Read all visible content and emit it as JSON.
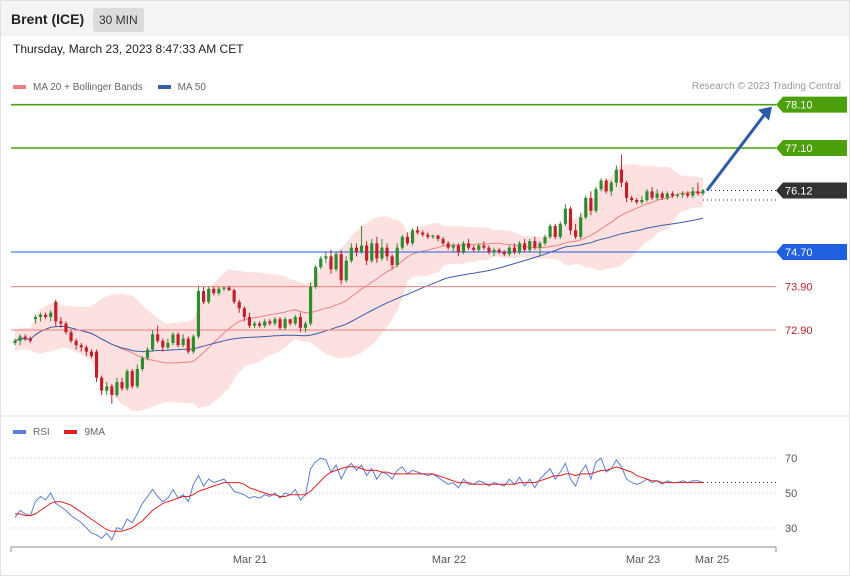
{
  "header": {
    "instrument": "Brent (ICE)",
    "timeframe": "30 MIN",
    "datetime": "Thursday, March 23, 2023 8:47:33 AM CET"
  },
  "legend_main": [
    {
      "label": "MA 20 + Bollinger Bands",
      "color": "#f08080"
    },
    {
      "label": "MA 50",
      "color": "#3b5ea8"
    }
  ],
  "legend_rsi": [
    {
      "label": "RSI",
      "color": "#5b7fd8"
    },
    {
      "label": "9MA",
      "color": "#e02020"
    }
  ],
  "credit": "Research © 2023 Trading Central",
  "colors": {
    "up": "#2e8b2e",
    "down": "#c0202a",
    "target": "#4ca00c",
    "pivot": "#1f5fe0",
    "support": "#f08080",
    "last": "#333333",
    "arrow": "#2f5aa8",
    "band": "#fde0e0"
  },
  "chart_data": [
    {
      "type": "candlestick",
      "title": "Brent (ICE)",
      "timeframe": "30 MIN",
      "ylim": [
        71.1,
        78.3
      ],
      "x_labels": [
        "Mar 21",
        "Mar 22",
        "Mar 23",
        "Mar 25"
      ],
      "levels": [
        {
          "value": 78.1,
          "label": "78.10",
          "kind": "target"
        },
        {
          "value": 77.1,
          "label": "77.10",
          "kind": "target"
        },
        {
          "value": 76.12,
          "label": "76.12",
          "kind": "last"
        },
        {
          "value": 74.7,
          "label": "74.70",
          "kind": "pivot"
        },
        {
          "value": 73.9,
          "label": "73.90",
          "kind": "support"
        },
        {
          "value": 72.9,
          "label": "72.90",
          "kind": "support"
        }
      ],
      "last_price": 76.12,
      "projection": {
        "from": 76.12,
        "to": 78.1
      },
      "candles": [
        [
          72.6,
          72.7,
          72.55,
          72.65
        ],
        [
          72.65,
          72.8,
          72.55,
          72.75
        ],
        [
          72.75,
          72.8,
          72.65,
          72.7
        ],
        [
          72.7,
          72.75,
          72.6,
          72.65
        ],
        [
          73.15,
          73.25,
          73.05,
          73.2
        ],
        [
          73.2,
          73.3,
          73.1,
          73.25
        ],
        [
          73.25,
          73.3,
          73.15,
          73.2
        ],
        [
          73.2,
          73.35,
          73.1,
          73.3
        ],
        [
          73.55,
          73.6,
          73.0,
          73.1
        ],
        [
          73.1,
          73.2,
          72.95,
          73.05
        ],
        [
          73.05,
          73.1,
          72.8,
          72.85
        ],
        [
          72.85,
          72.9,
          72.6,
          72.65
        ],
        [
          72.65,
          72.7,
          72.45,
          72.55
        ],
        [
          72.55,
          72.6,
          72.4,
          72.5
        ],
        [
          72.5,
          72.55,
          72.3,
          72.4
        ],
        [
          72.4,
          72.45,
          72.25,
          72.3
        ],
        [
          72.4,
          72.45,
          71.7,
          71.8
        ],
        [
          71.8,
          71.85,
          71.4,
          71.5
        ],
        [
          71.5,
          71.7,
          71.4,
          71.6
        ],
        [
          71.6,
          71.65,
          71.2,
          71.4
        ],
        [
          71.4,
          71.8,
          71.35,
          71.7
        ],
        [
          71.7,
          71.8,
          71.5,
          71.55
        ],
        [
          71.55,
          72.0,
          71.5,
          71.95
        ],
        [
          71.95,
          72.0,
          71.55,
          71.6
        ],
        [
          71.6,
          72.1,
          71.55,
          72.0
        ],
        [
          72.0,
          72.3,
          71.95,
          72.25
        ],
        [
          72.25,
          72.5,
          72.2,
          72.45
        ],
        [
          72.45,
          72.9,
          72.4,
          72.8
        ],
        [
          72.8,
          73.0,
          72.6,
          72.65
        ],
        [
          72.65,
          72.7,
          72.4,
          72.5
        ],
        [
          72.5,
          72.7,
          72.45,
          72.6
        ],
        [
          72.6,
          72.85,
          72.55,
          72.8
        ],
        [
          72.8,
          72.85,
          72.5,
          72.55
        ],
        [
          72.55,
          72.8,
          72.5,
          72.7
        ],
        [
          72.7,
          72.75,
          72.35,
          72.4
        ],
        [
          72.4,
          72.8,
          72.35,
          72.75
        ],
        [
          72.75,
          73.9,
          72.7,
          73.8
        ],
        [
          73.8,
          73.9,
          73.5,
          73.55
        ],
        [
          73.55,
          73.9,
          73.5,
          73.85
        ],
        [
          73.85,
          73.9,
          73.7,
          73.75
        ],
        [
          73.75,
          73.9,
          73.7,
          73.85
        ],
        [
          73.85,
          73.9,
          73.8,
          73.88
        ],
        [
          73.88,
          73.92,
          73.8,
          73.82
        ],
        [
          73.82,
          73.85,
          73.5,
          73.55
        ],
        [
          73.55,
          73.6,
          73.3,
          73.4
        ],
        [
          73.4,
          73.45,
          73.1,
          73.2
        ],
        [
          73.2,
          73.3,
          72.95,
          73.0
        ],
        [
          73.0,
          73.1,
          72.95,
          73.05
        ],
        [
          73.05,
          73.1,
          72.95,
          73.0
        ],
        [
          73.0,
          73.15,
          72.95,
          73.1
        ],
        [
          73.1,
          73.15,
          73.0,
          73.05
        ],
        [
          73.05,
          73.2,
          73.0,
          73.15
        ],
        [
          73.15,
          73.2,
          72.9,
          72.95
        ],
        [
          72.95,
          73.2,
          72.9,
          73.15
        ],
        [
          73.15,
          73.1,
          73.0,
          73.05
        ],
        [
          73.05,
          73.25,
          73.0,
          73.2
        ],
        [
          73.2,
          73.3,
          72.85,
          72.95
        ],
        [
          72.95,
          73.1,
          72.85,
          73.05
        ],
        [
          73.05,
          74.0,
          73.0,
          73.9
        ],
        [
          73.9,
          74.4,
          73.85,
          74.35
        ],
        [
          74.35,
          74.6,
          74.3,
          74.55
        ],
        [
          74.55,
          74.7,
          74.45,
          74.6
        ],
        [
          74.6,
          74.75,
          74.2,
          74.3
        ],
        [
          74.3,
          74.7,
          74.25,
          74.65
        ],
        [
          74.65,
          74.75,
          73.95,
          74.05
        ],
        [
          74.05,
          74.6,
          74.0,
          74.5
        ],
        [
          74.5,
          74.9,
          74.45,
          74.8
        ],
        [
          74.8,
          74.9,
          74.6,
          74.7
        ],
        [
          74.7,
          75.3,
          74.65,
          74.85
        ],
        [
          74.85,
          74.95,
          74.4,
          74.5
        ],
        [
          74.5,
          75.0,
          74.45,
          74.9
        ],
        [
          74.9,
          75.05,
          74.45,
          74.55
        ],
        [
          74.55,
          75.0,
          74.5,
          74.8
        ],
        [
          74.8,
          74.9,
          74.5,
          74.6
        ],
        [
          74.6,
          74.65,
          74.3,
          74.4
        ],
        [
          74.4,
          74.9,
          74.35,
          74.8
        ],
        [
          74.8,
          75.1,
          74.75,
          75.05
        ],
        [
          75.05,
          75.15,
          74.85,
          74.9
        ],
        [
          74.9,
          75.25,
          74.85,
          75.2
        ],
        [
          75.2,
          75.3,
          75.1,
          75.15
        ],
        [
          75.15,
          75.2,
          75.05,
          75.1
        ],
        [
          75.1,
          75.15,
          75.0,
          75.05
        ],
        [
          75.05,
          75.1,
          75.0,
          75.08
        ],
        [
          75.08,
          75.1,
          74.95,
          75.0
        ],
        [
          75.0,
          75.05,
          74.85,
          74.9
        ],
        [
          74.9,
          74.95,
          74.75,
          74.8
        ],
        [
          74.8,
          74.9,
          74.7,
          74.85
        ],
        [
          74.85,
          74.9,
          74.6,
          74.7
        ],
        [
          74.7,
          74.95,
          74.65,
          74.9
        ],
        [
          74.9,
          75.0,
          74.75,
          74.8
        ],
        [
          74.8,
          74.85,
          74.7,
          74.75
        ],
        [
          74.75,
          74.9,
          74.7,
          74.85
        ],
        [
          74.85,
          74.95,
          74.75,
          74.8
        ],
        [
          74.8,
          74.85,
          74.65,
          74.7
        ],
        [
          74.7,
          74.8,
          74.6,
          74.75
        ],
        [
          74.75,
          74.8,
          74.65,
          74.7
        ],
        [
          74.7,
          74.75,
          74.6,
          74.65
        ],
        [
          74.65,
          74.85,
          74.6,
          74.8
        ],
        [
          74.8,
          74.9,
          74.65,
          74.7
        ],
        [
          74.7,
          74.95,
          74.65,
          74.9
        ],
        [
          74.9,
          75.0,
          74.7,
          74.75
        ],
        [
          74.75,
          75.0,
          74.7,
          74.95
        ],
        [
          74.95,
          75.05,
          74.75,
          74.8
        ],
        [
          74.8,
          74.95,
          74.6,
          74.9
        ],
        [
          74.9,
          75.1,
          74.85,
          75.05
        ],
        [
          75.05,
          75.35,
          75.0,
          75.3
        ],
        [
          75.3,
          75.35,
          75.0,
          75.05
        ],
        [
          75.05,
          75.4,
          75.0,
          75.35
        ],
        [
          75.35,
          75.8,
          75.3,
          75.7
        ],
        [
          75.7,
          75.75,
          75.1,
          75.2
        ],
        [
          75.2,
          75.35,
          75.0,
          75.05
        ],
        [
          75.05,
          75.6,
          75.0,
          75.5
        ],
        [
          75.5,
          76.0,
          75.45,
          75.95
        ],
        [
          75.95,
          76.1,
          75.55,
          75.65
        ],
        [
          75.65,
          76.2,
          75.6,
          76.15
        ],
        [
          76.15,
          76.4,
          76.1,
          76.35
        ],
        [
          76.35,
          76.4,
          76.05,
          76.1
        ],
        [
          76.1,
          76.35,
          76.0,
          76.3
        ],
        [
          76.3,
          76.7,
          76.2,
          76.6
        ],
        [
          76.6,
          76.95,
          76.2,
          76.3
        ],
        [
          76.3,
          76.35,
          75.85,
          75.95
        ],
        [
          75.95,
          76.0,
          75.85,
          75.9
        ],
        [
          75.9,
          75.95,
          75.8,
          75.85
        ],
        [
          75.85,
          76.0,
          75.8,
          75.9
        ],
        [
          75.9,
          76.15,
          75.85,
          76.1
        ],
        [
          76.1,
          76.2,
          75.9,
          75.95
        ],
        [
          75.95,
          76.15,
          75.9,
          76.05
        ],
        [
          76.05,
          76.1,
          75.9,
          75.95
        ],
        [
          75.95,
          76.1,
          75.9,
          76.05
        ],
        [
          76.05,
          76.1,
          75.95,
          76.0
        ],
        [
          76.0,
          76.05,
          75.95,
          76.02
        ],
        [
          76.02,
          76.1,
          75.95,
          76.05
        ],
        [
          76.05,
          76.1,
          75.95,
          76.0
        ],
        [
          76.0,
          76.2,
          75.95,
          76.1
        ],
        [
          76.1,
          76.3,
          76.0,
          76.05
        ],
        [
          76.05,
          76.15,
          76.0,
          76.12
        ]
      ]
    },
    {
      "type": "line",
      "title": "RSI",
      "ylim": [
        23,
        77
      ],
      "yticks": [
        30,
        50,
        70
      ],
      "series": [
        {
          "name": "RSI",
          "values": [
            36,
            40,
            38,
            37,
            45,
            48,
            46,
            50,
            44,
            42,
            40,
            37,
            35,
            33,
            30,
            27,
            26,
            24,
            27,
            23,
            30,
            29,
            35,
            33,
            38,
            44,
            48,
            52,
            48,
            45,
            47,
            52,
            47,
            49,
            45,
            55,
            60,
            54,
            58,
            56,
            57,
            58,
            55,
            51,
            50,
            49,
            47,
            48,
            47,
            49,
            48,
            50,
            47,
            50,
            49,
            52,
            46,
            49,
            64,
            68,
            70,
            69,
            62,
            66,
            58,
            64,
            67,
            63,
            66,
            60,
            64,
            58,
            62,
            61,
            58,
            63,
            65,
            61,
            63,
            62,
            61,
            60,
            61,
            59,
            57,
            55,
            56,
            53,
            58,
            55,
            55,
            57,
            56,
            54,
            56,
            55,
            54,
            58,
            55,
            59,
            54,
            58,
            53,
            58,
            61,
            64,
            58,
            62,
            67,
            58,
            54,
            62,
            66,
            58,
            68,
            70,
            62,
            64,
            69,
            65,
            58,
            56,
            55,
            56,
            58,
            56,
            57,
            55,
            57,
            56,
            56,
            57,
            56,
            57,
            57,
            56
          ]
        },
        {
          "name": "9MA",
          "values": [
            38,
            38,
            37,
            37,
            38,
            40,
            42,
            44,
            45,
            45,
            44,
            43,
            41,
            39,
            37,
            35,
            33,
            31,
            29,
            28,
            28,
            28,
            29,
            30,
            32,
            34,
            37,
            40,
            42,
            44,
            45,
            46,
            47,
            48,
            48,
            49,
            51,
            52,
            53,
            54,
            55,
            56,
            56,
            56,
            56,
            55,
            53,
            52,
            51,
            50,
            49,
            49,
            48,
            48,
            49,
            49,
            49,
            49,
            51,
            54,
            57,
            60,
            62,
            63,
            64,
            65,
            65,
            65,
            64,
            63,
            63,
            63,
            62,
            62,
            61,
            61,
            61,
            61,
            61,
            61,
            61,
            61,
            61,
            60,
            59,
            58,
            57,
            56,
            56,
            56,
            55,
            55,
            55,
            55,
            55,
            55,
            55,
            55,
            55,
            56,
            56,
            56,
            56,
            57,
            58,
            59,
            60,
            60,
            61,
            61,
            60,
            61,
            61,
            61,
            62,
            63,
            63,
            64,
            65,
            64,
            63,
            62,
            60,
            59,
            58,
            57,
            57,
            56,
            56,
            56,
            56,
            56,
            56,
            56,
            56,
            56
          ]
        }
      ]
    }
  ]
}
